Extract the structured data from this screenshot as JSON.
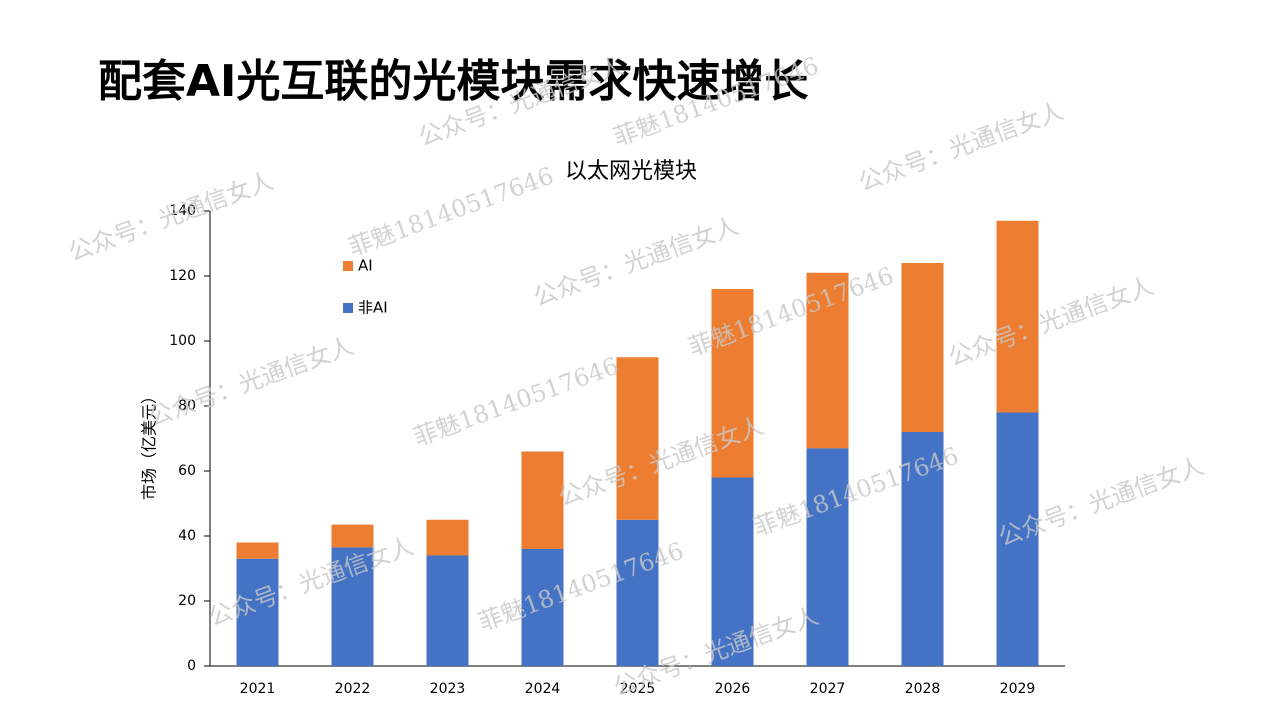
{
  "header": {
    "title": "配套AI光互联的光模块需求快速增长"
  },
  "watermarks": [
    "公众号：光通信女人",
    "菲魅18140517646"
  ],
  "chart_data": {
    "type": "stacked-bar",
    "title": "以太网光模块",
    "y_label": "市场（亿美元）",
    "categories": [
      "2021",
      "2022",
      "2023",
      "2024",
      "2025",
      "2026",
      "2027",
      "2028",
      "2029"
    ],
    "series": [
      {
        "name": "非AI",
        "color": "#4472c4",
        "values": [
          33,
          36.5,
          34,
          36,
          45,
          58,
          67,
          72,
          78
        ]
      },
      {
        "name": "AI",
        "color": "#ed7d31",
        "values": [
          5,
          7,
          11,
          30,
          50,
          58,
          54,
          52,
          59
        ]
      }
    ],
    "ylim": [
      0,
      140
    ],
    "yticks": [
      0,
      20,
      40,
      60,
      80,
      100,
      120,
      140
    ],
    "grid": false
  }
}
